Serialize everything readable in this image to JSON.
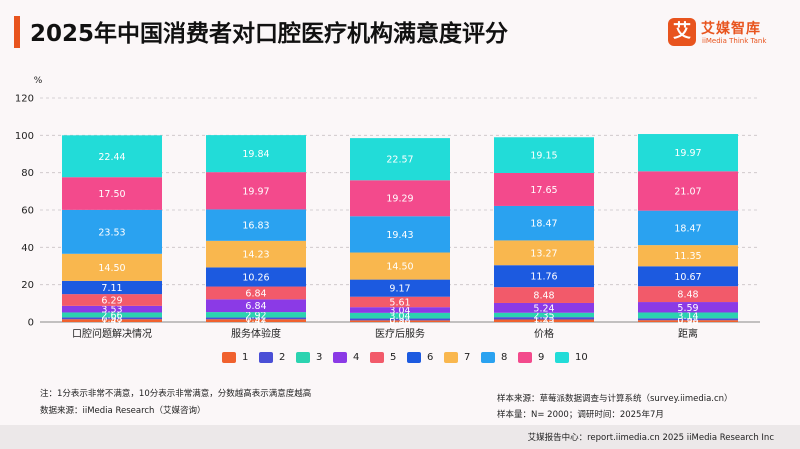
{
  "title": "2025年中国消费者对口腔医疗机构满意度评分",
  "logo": {
    "mark": "艾",
    "name": "艾媒智库",
    "sub": "iiMedia Think Tank"
  },
  "colors": {
    "1": "#f0612e",
    "2": "#4a4fd6",
    "3": "#2bd3b0",
    "4": "#8b3ae6",
    "5": "#f25a6a",
    "6": "#1c5ae0",
    "7": "#f9b74e",
    "8": "#2aa2f0",
    "9": "#f34a8c",
    "10": "#22dcd8"
  },
  "chart_data": {
    "type": "bar",
    "stacked": true,
    "ylabel": "%",
    "ylim": [
      0,
      120
    ],
    "yticks": [
      0,
      20,
      40,
      60,
      80,
      100,
      120
    ],
    "grid": true,
    "legend_position": "bottom",
    "categories": [
      "口腔问题解决情况",
      "服务体验度",
      "医疗后服务",
      "价格",
      "距离"
    ],
    "series": [
      {
        "name": "1",
        "values": [
          1.47,
          1.47,
          0.88,
          1.35,
          0.98
        ]
      },
      {
        "name": "2",
        "values": [
          0.98,
          0.92,
          0.98,
          1.25,
          0.98
        ]
      },
      {
        "name": "3",
        "values": [
          2.66,
          2.92,
          3.04,
          2.35,
          3.14
        ]
      },
      {
        "name": "4",
        "values": [
          3.53,
          6.84,
          3.04,
          5.24,
          5.59
        ]
      },
      {
        "name": "5",
        "values": [
          6.29,
          6.84,
          5.61,
          8.48,
          8.48
        ]
      },
      {
        "name": "6",
        "values": [
          7.11,
          10.26,
          9.17,
          11.76,
          10.67
        ]
      },
      {
        "name": "7",
        "values": [
          14.5,
          14.23,
          14.5,
          13.27,
          11.35
        ]
      },
      {
        "name": "8",
        "values": [
          23.53,
          16.83,
          19.43,
          18.47,
          18.47
        ]
      },
      {
        "name": "9",
        "values": [
          17.5,
          19.97,
          19.29,
          17.65,
          21.07
        ]
      },
      {
        "name": "10",
        "values": [
          22.44,
          19.84,
          22.57,
          19.15,
          19.97
        ]
      }
    ]
  },
  "notes": {
    "note": "注：1分表示非常不满意，10分表示非常满意，分数越高表示满意度越高",
    "source": "数据来源：iiMedia Research（艾媒咨询）",
    "sample_source": "样本来源：草莓派数据调查与计算系统（survey.iimedia.cn）",
    "sample_size": "样本量：N= 2000；调研时间：2025年7月"
  },
  "footer": "艾媒报告中心：report.iimedia.cn  2025 iiMedia Research Inc"
}
